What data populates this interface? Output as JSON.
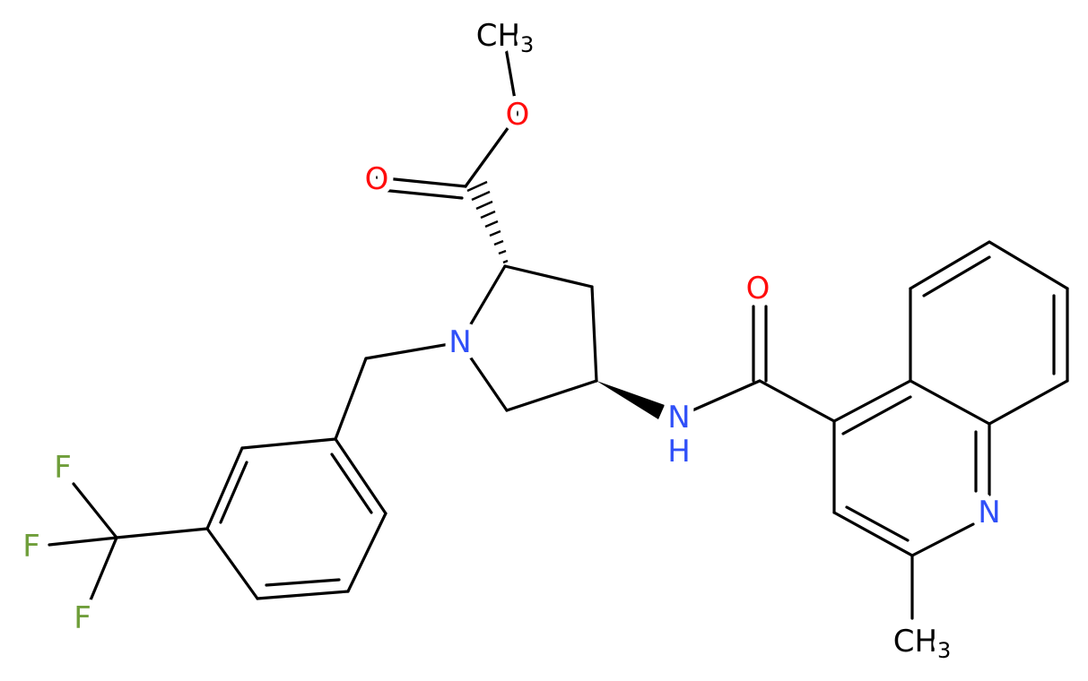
{
  "atoms": [
    {
      "label": "CH",
      "sub": "3"
    },
    {
      "label": "O"
    },
    {
      "label": "O"
    },
    {
      "label": "N"
    },
    {
      "label": "N",
      "h": "H"
    },
    {
      "label": "O"
    },
    {
      "label": "N"
    },
    {
      "label": "CH",
      "sub": "3"
    },
    {
      "label": "F"
    },
    {
      "label": "F"
    },
    {
      "label": "F"
    }
  ]
}
